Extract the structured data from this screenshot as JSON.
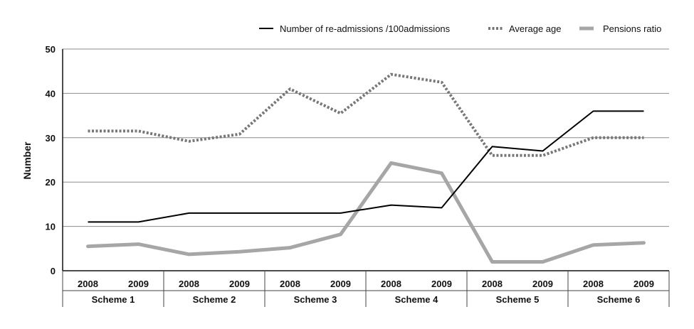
{
  "chart_data": {
    "type": "line",
    "ylabel": "Number",
    "ylim": [
      0,
      50
    ],
    "yticks": [
      0,
      10,
      20,
      30,
      40,
      50
    ],
    "grid": "horizontal",
    "legend_position": "top-right",
    "categories": [
      "2008",
      "2009",
      "2008",
      "2009",
      "2008",
      "2009",
      "2008",
      "2009",
      "2008",
      "2009",
      "2008",
      "2009"
    ],
    "groups": [
      "Scheme 1",
      "Scheme 2",
      "Scheme 3",
      "Scheme 4",
      "Scheme 5",
      "Scheme 6"
    ],
    "series": [
      {
        "name": "Number of re-admissions /100admissions",
        "color": "#000000",
        "style": "solid-thin",
        "values": [
          11,
          11,
          13,
          13,
          13,
          13,
          14.8,
          14.2,
          28,
          27,
          36,
          36
        ]
      },
      {
        "name": "Average age",
        "color": "#777777",
        "style": "dotted",
        "values": [
          31.5,
          31.5,
          29.2,
          30.8,
          41,
          35.5,
          44.3,
          42.5,
          26,
          26,
          30,
          30
        ]
      },
      {
        "name": "Pensions ratio",
        "color": "#a6a6a6",
        "style": "solid-thick",
        "values": [
          5.5,
          6,
          3.7,
          4.3,
          5.2,
          8.2,
          24.3,
          22,
          2,
          2,
          5.8,
          6.3
        ]
      }
    ]
  }
}
